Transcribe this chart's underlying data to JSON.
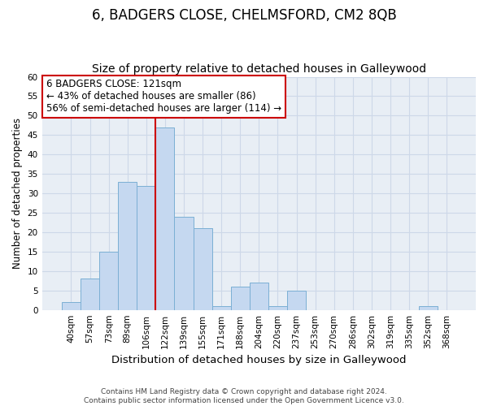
{
  "title": "6, BADGERS CLOSE, CHELMSFORD, CM2 8QB",
  "subtitle": "Size of property relative to detached houses in Galleywood",
  "xlabel": "Distribution of detached houses by size in Galleywood",
  "ylabel": "Number of detached properties",
  "bin_labels": [
    "40sqm",
    "57sqm",
    "73sqm",
    "89sqm",
    "106sqm",
    "122sqm",
    "139sqm",
    "155sqm",
    "171sqm",
    "188sqm",
    "204sqm",
    "220sqm",
    "237sqm",
    "253sqm",
    "270sqm",
    "286sqm",
    "302sqm",
    "319sqm",
    "335sqm",
    "352sqm",
    "368sqm"
  ],
  "bar_heights": [
    2,
    8,
    15,
    33,
    32,
    47,
    24,
    21,
    1,
    6,
    7,
    1,
    5,
    0,
    0,
    0,
    0,
    0,
    0,
    1,
    0
  ],
  "bar_color": "#c5d8f0",
  "bar_edge_color": "#7bafd4",
  "highlight_bar_index": 5,
  "highlight_line_color": "#cc0000",
  "annotation_line1": "6 BADGERS CLOSE: 121sqm",
  "annotation_line2": "← 43% of detached houses are smaller (86)",
  "annotation_line3": "56% of semi-detached houses are larger (114) →",
  "annotation_box_color": "white",
  "annotation_box_edge_color": "#cc0000",
  "ylim": [
    0,
    60
  ],
  "yticks": [
    0,
    5,
    10,
    15,
    20,
    25,
    30,
    35,
    40,
    45,
    50,
    55,
    60
  ],
  "grid_color": "#cdd8e8",
  "bg_color": "#e8eef5",
  "footnote": "Contains HM Land Registry data © Crown copyright and database right 2024.\nContains public sector information licensed under the Open Government Licence v3.0.",
  "title_fontsize": 12,
  "subtitle_fontsize": 10,
  "xlabel_fontsize": 9.5,
  "ylabel_fontsize": 8.5,
  "tick_fontsize": 7.5,
  "annotation_fontsize": 8.5,
  "footnote_fontsize": 6.5
}
